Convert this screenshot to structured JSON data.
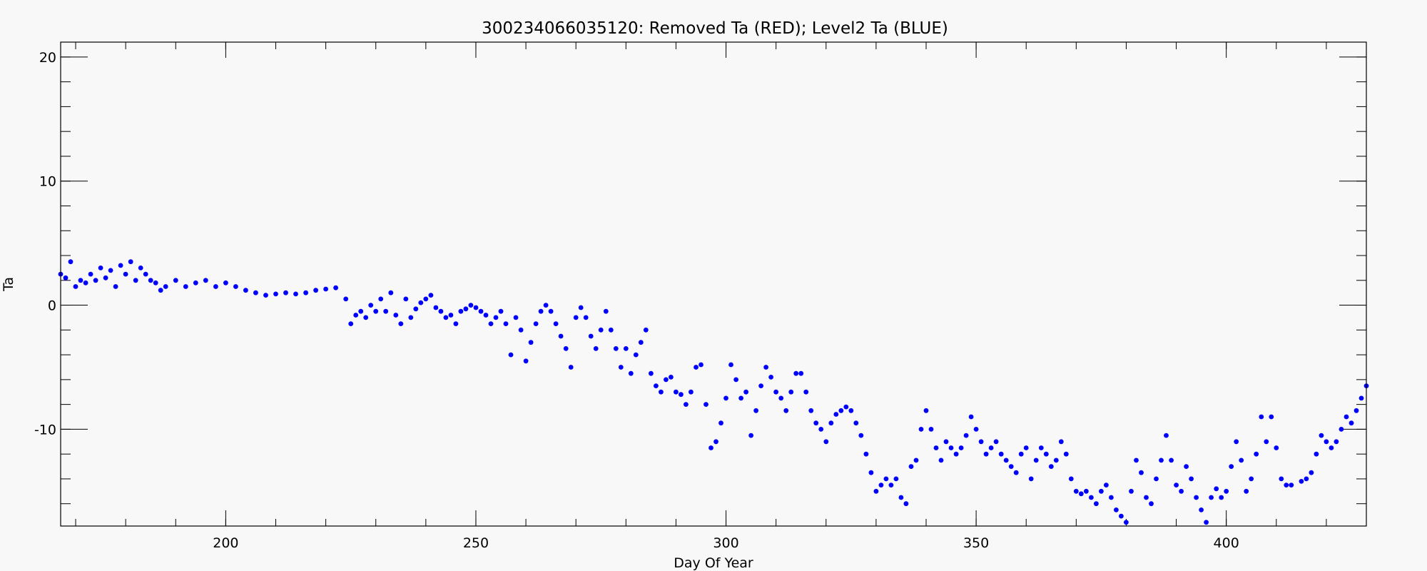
{
  "chart_data": {
    "type": "scatter",
    "title": "300234066035120: Removed Ta (RED); Level2 Ta (BLUE)",
    "xlabel": "Day Of Year",
    "ylabel": "Ta",
    "xlim": [
      167,
      428
    ],
    "ylim": [
      -17.8,
      21.2
    ],
    "xticks": [
      200,
      250,
      300,
      350,
      400
    ],
    "yticks": [
      20,
      10,
      0,
      -10
    ],
    "x_minor_step": 10,
    "y_minor_step": 2,
    "grid": false,
    "legend": "none",
    "series": [
      {
        "color": "#0000ff",
        "values": [
          [
            167,
            2.5
          ],
          [
            168,
            2.2
          ],
          [
            169,
            3.5
          ],
          [
            170,
            1.5
          ],
          [
            171,
            2.0
          ],
          [
            172,
            1.8
          ],
          [
            173,
            2.5
          ],
          [
            174,
            2.0
          ],
          [
            175,
            3.0
          ],
          [
            176,
            2.2
          ],
          [
            177,
            2.8
          ],
          [
            178,
            1.5
          ],
          [
            179,
            3.2
          ],
          [
            180,
            2.5
          ],
          [
            181,
            3.5
          ],
          [
            182,
            2.0
          ],
          [
            183,
            3.0
          ],
          [
            184,
            2.5
          ],
          [
            185,
            2.0
          ],
          [
            186,
            1.8
          ],
          [
            187,
            1.2
          ],
          [
            188,
            1.5
          ],
          [
            190,
            2.0
          ],
          [
            192,
            1.5
          ],
          [
            194,
            1.8
          ],
          [
            196,
            2.0
          ],
          [
            198,
            1.5
          ],
          [
            200,
            1.8
          ],
          [
            202,
            1.5
          ],
          [
            204,
            1.2
          ],
          [
            206,
            1.0
          ],
          [
            208,
            0.8
          ],
          [
            210,
            0.9
          ],
          [
            212,
            1.0
          ],
          [
            214,
            0.9
          ],
          [
            216,
            1.0
          ],
          [
            218,
            1.2
          ],
          [
            220,
            1.3
          ],
          [
            222,
            1.4
          ],
          [
            224,
            0.5
          ],
          [
            225,
            -1.5
          ],
          [
            226,
            -0.8
          ],
          [
            227,
            -0.5
          ],
          [
            228,
            -1.0
          ],
          [
            229,
            0.0
          ],
          [
            230,
            -0.5
          ],
          [
            231,
            0.5
          ],
          [
            232,
            -0.5
          ],
          [
            233,
            1.0
          ],
          [
            234,
            -0.8
          ],
          [
            235,
            -1.5
          ],
          [
            236,
            0.5
          ],
          [
            237,
            -1.0
          ],
          [
            238,
            -0.3
          ],
          [
            239,
            0.2
          ],
          [
            240,
            0.5
          ],
          [
            241,
            0.8
          ],
          [
            242,
            -0.2
          ],
          [
            243,
            -0.5
          ],
          [
            244,
            -1.0
          ],
          [
            245,
            -0.8
          ],
          [
            246,
            -1.5
          ],
          [
            247,
            -0.5
          ],
          [
            248,
            -0.3
          ],
          [
            249,
            0.0
          ],
          [
            250,
            -0.2
          ],
          [
            251,
            -0.5
          ],
          [
            252,
            -0.8
          ],
          [
            253,
            -1.5
          ],
          [
            254,
            -1.0
          ],
          [
            255,
            -0.5
          ],
          [
            256,
            -1.5
          ],
          [
            257,
            -4.0
          ],
          [
            258,
            -1.0
          ],
          [
            259,
            -2.0
          ],
          [
            260,
            -4.5
          ],
          [
            261,
            -3.0
          ],
          [
            262,
            -1.5
          ],
          [
            263,
            -0.5
          ],
          [
            264,
            0.0
          ],
          [
            265,
            -0.5
          ],
          [
            266,
            -1.5
          ],
          [
            267,
            -2.5
          ],
          [
            268,
            -3.5
          ],
          [
            269,
            -5.0
          ],
          [
            270,
            -1.0
          ],
          [
            271,
            -0.2
          ],
          [
            272,
            -1.0
          ],
          [
            273,
            -2.5
          ],
          [
            274,
            -3.5
          ],
          [
            275,
            -2.0
          ],
          [
            276,
            -0.5
          ],
          [
            277,
            -2.0
          ],
          [
            278,
            -3.5
          ],
          [
            279,
            -5.0
          ],
          [
            280,
            -3.5
          ],
          [
            281,
            -5.5
          ],
          [
            282,
            -4.0
          ],
          [
            283,
            -3.0
          ],
          [
            284,
            -2.0
          ],
          [
            285,
            -5.5
          ],
          [
            286,
            -6.5
          ],
          [
            287,
            -7.0
          ],
          [
            288,
            -6.0
          ],
          [
            289,
            -5.8
          ],
          [
            290,
            -7.0
          ],
          [
            291,
            -7.2
          ],
          [
            292,
            -8.0
          ],
          [
            293,
            -7.0
          ],
          [
            294,
            -5.0
          ],
          [
            295,
            -4.8
          ],
          [
            296,
            -8.0
          ],
          [
            297,
            -11.5
          ],
          [
            298,
            -11.0
          ],
          [
            299,
            -9.5
          ],
          [
            300,
            -7.5
          ],
          [
            301,
            -4.8
          ],
          [
            302,
            -6.0
          ],
          [
            303,
            -7.5
          ],
          [
            304,
            -7.0
          ],
          [
            305,
            -10.5
          ],
          [
            306,
            -8.5
          ],
          [
            307,
            -6.5
          ],
          [
            308,
            -5.0
          ],
          [
            309,
            -5.8
          ],
          [
            310,
            -7.0
          ],
          [
            311,
            -7.5
          ],
          [
            312,
            -8.5
          ],
          [
            313,
            -7.0
          ],
          [
            314,
            -5.5
          ],
          [
            315,
            -5.5
          ],
          [
            316,
            -7.0
          ],
          [
            317,
            -8.5
          ],
          [
            318,
            -9.5
          ],
          [
            319,
            -10.0
          ],
          [
            320,
            -11.0
          ],
          [
            321,
            -9.5
          ],
          [
            322,
            -8.8
          ],
          [
            323,
            -8.5
          ],
          [
            324,
            -8.2
          ],
          [
            325,
            -8.5
          ],
          [
            326,
            -9.5
          ],
          [
            327,
            -10.5
          ],
          [
            328,
            -12.0
          ],
          [
            329,
            -13.5
          ],
          [
            330,
            -15.0
          ],
          [
            331,
            -14.5
          ],
          [
            332,
            -14.0
          ],
          [
            333,
            -14.5
          ],
          [
            334,
            -14.0
          ],
          [
            335,
            -15.5
          ],
          [
            336,
            -16.0
          ],
          [
            337,
            -13.0
          ],
          [
            338,
            -12.5
          ],
          [
            339,
            -10.0
          ],
          [
            340,
            -8.5
          ],
          [
            341,
            -10.0
          ],
          [
            342,
            -11.5
          ],
          [
            343,
            -12.5
          ],
          [
            344,
            -11.0
          ],
          [
            345,
            -11.5
          ],
          [
            346,
            -12.0
          ],
          [
            347,
            -11.5
          ],
          [
            348,
            -10.5
          ],
          [
            349,
            -9.0
          ],
          [
            350,
            -10.0
          ],
          [
            351,
            -11.0
          ],
          [
            352,
            -12.0
          ],
          [
            353,
            -11.5
          ],
          [
            354,
            -11.0
          ],
          [
            355,
            -12.0
          ],
          [
            356,
            -12.5
          ],
          [
            357,
            -13.0
          ],
          [
            358,
            -13.5
          ],
          [
            359,
            -12.0
          ],
          [
            360,
            -11.5
          ],
          [
            361,
            -14.0
          ],
          [
            362,
            -12.5
          ],
          [
            363,
            -11.5
          ],
          [
            364,
            -12.0
          ],
          [
            365,
            -13.0
          ],
          [
            366,
            -12.5
          ],
          [
            367,
            -11.0
          ],
          [
            368,
            -12.0
          ],
          [
            369,
            -14.0
          ],
          [
            370,
            -15.0
          ],
          [
            371,
            -15.2
          ],
          [
            372,
            -15.0
          ],
          [
            373,
            -15.5
          ],
          [
            374,
            -16.0
          ],
          [
            375,
            -15.0
          ],
          [
            376,
            -14.5
          ],
          [
            377,
            -15.5
          ],
          [
            378,
            -16.5
          ],
          [
            379,
            -17.0
          ],
          [
            380,
            -17.5
          ],
          [
            381,
            -15.0
          ],
          [
            382,
            -12.5
          ],
          [
            383,
            -13.5
          ],
          [
            384,
            -15.5
          ],
          [
            385,
            -16.0
          ],
          [
            386,
            -14.0
          ],
          [
            387,
            -12.5
          ],
          [
            388,
            -10.5
          ],
          [
            389,
            -12.5
          ],
          [
            390,
            -14.5
          ],
          [
            391,
            -15.0
          ],
          [
            392,
            -13.0
          ],
          [
            393,
            -14.0
          ],
          [
            394,
            -15.5
          ],
          [
            395,
            -16.5
          ],
          [
            396,
            -17.5
          ],
          [
            397,
            -15.5
          ],
          [
            398,
            -14.8
          ],
          [
            399,
            -15.5
          ],
          [
            400,
            -15.0
          ],
          [
            401,
            -13.0
          ],
          [
            402,
            -11.0
          ],
          [
            403,
            -12.5
          ],
          [
            404,
            -15.0
          ],
          [
            405,
            -14.0
          ],
          [
            406,
            -12.0
          ],
          [
            407,
            -9.0
          ],
          [
            408,
            -11.0
          ],
          [
            409,
            -9.0
          ],
          [
            410,
            -11.5
          ],
          [
            411,
            -14.0
          ],
          [
            412,
            -14.5
          ],
          [
            413,
            -14.5
          ],
          [
            415,
            -14.2
          ],
          [
            416,
            -14.0
          ],
          [
            417,
            -13.5
          ],
          [
            418,
            -12.0
          ],
          [
            419,
            -10.5
          ],
          [
            420,
            -11.0
          ],
          [
            421,
            -11.5
          ],
          [
            422,
            -11.0
          ],
          [
            423,
            -10.0
          ],
          [
            424,
            -9.0
          ],
          [
            425,
            -9.5
          ],
          [
            426,
            -8.5
          ],
          [
            427,
            -7.5
          ],
          [
            428,
            -6.5
          ]
        ]
      }
    ]
  }
}
